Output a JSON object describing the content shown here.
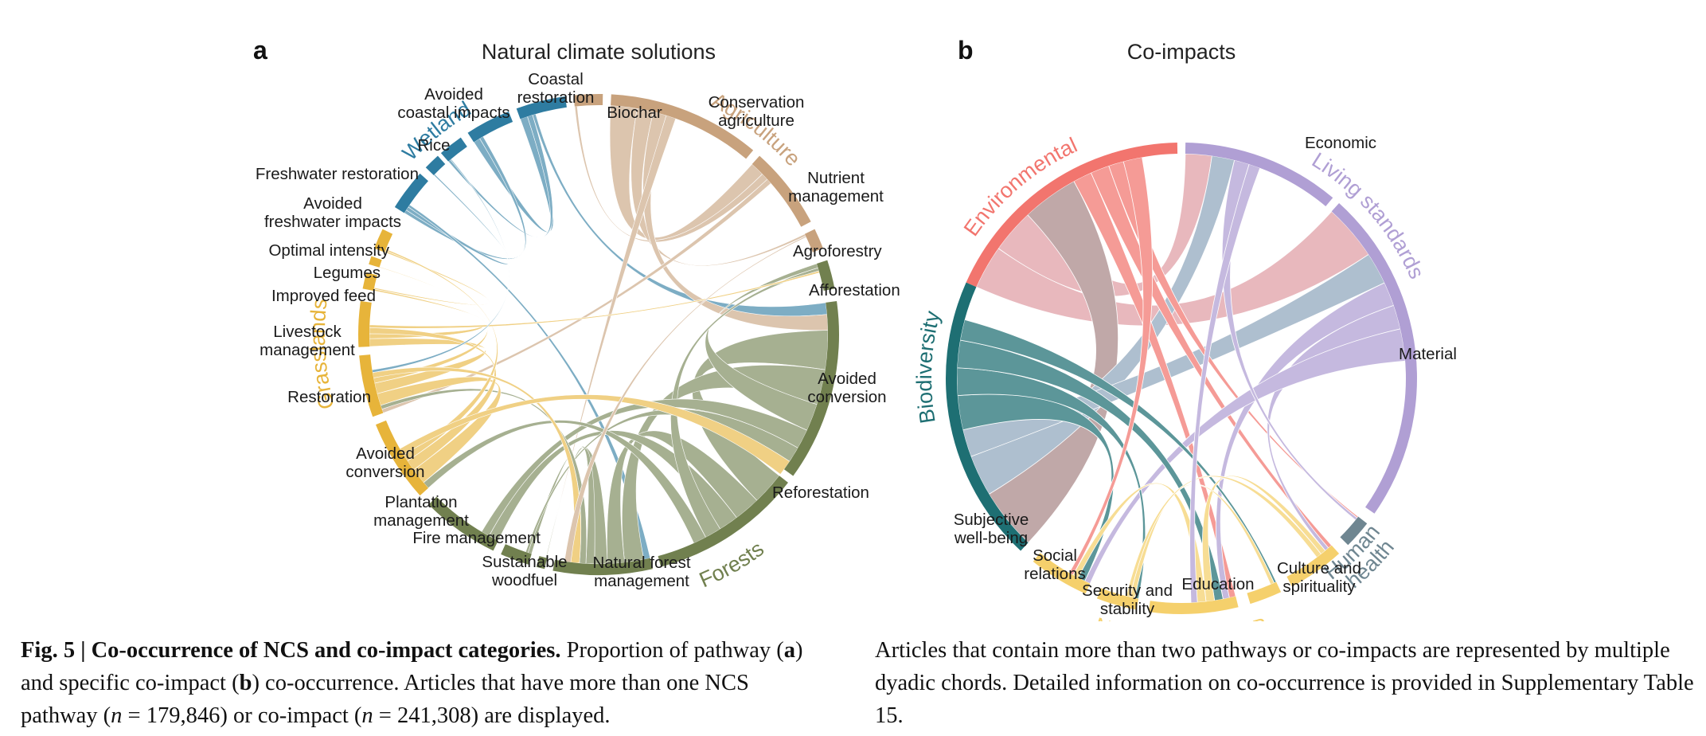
{
  "panel_a": {
    "letter": "a",
    "title": "Natural climate solutions",
    "groups": [
      {
        "label": "Wetland",
        "color": "#2E7CA1"
      },
      {
        "label": "Agriculture",
        "color": "#C8A27D"
      },
      {
        "label": "Forests",
        "color": "#71804F"
      },
      {
        "label": "Grasslands",
        "color": "#E7B43A"
      }
    ],
    "pathways": [
      {
        "group": "Wetland",
        "label": "Coastal restoration"
      },
      {
        "group": "Wetland",
        "label": "Avoided coastal impacts"
      },
      {
        "group": "Wetland",
        "label": "Rice"
      },
      {
        "group": "Wetland",
        "label": "Freshwater restoration"
      },
      {
        "group": "Wetland",
        "label": "Avoided freshwater impacts"
      },
      {
        "group": "Agriculture",
        "label": "Biochar"
      },
      {
        "group": "Agriculture",
        "label": "Conservation agriculture"
      },
      {
        "group": "Agriculture",
        "label": "Nutrient management"
      },
      {
        "group": "Agriculture",
        "label": "Agroforestry"
      },
      {
        "group": "Forests",
        "label": "Afforestation"
      },
      {
        "group": "Forests",
        "label": "Avoided conversion"
      },
      {
        "group": "Forests",
        "label": "Reforestation"
      },
      {
        "group": "Forests",
        "label": "Natural forest management"
      },
      {
        "group": "Forests",
        "label": "Sustainable woodfuel"
      },
      {
        "group": "Forests",
        "label": "Fire management"
      },
      {
        "group": "Forests",
        "label": "Plantation management"
      },
      {
        "group": "Grasslands",
        "label": "Avoided conversion"
      },
      {
        "group": "Grasslands",
        "label": "Restoration"
      },
      {
        "group": "Grasslands",
        "label": "Livestock management"
      },
      {
        "group": "Grasslands",
        "label": "Improved feed"
      },
      {
        "group": "Grasslands",
        "label": "Legumes"
      },
      {
        "group": "Grasslands",
        "label": "Optimal intensity"
      }
    ]
  },
  "panel_b": {
    "letter": "b",
    "title": "Co-impacts",
    "groups": [
      {
        "label": "Environmental",
        "color": "#F2756E"
      },
      {
        "label": "Living standards",
        "color": "#B09FD4"
      },
      {
        "label": "Human health",
        "color": "#6F8691"
      },
      {
        "label": "Non-material HWB",
        "color": "#F5D06C"
      },
      {
        "label": "Biodiversity",
        "color": "#1E6F73"
      }
    ],
    "categories": [
      {
        "group": "Environmental",
        "label": ""
      },
      {
        "group": "Living standards",
        "label": "Economic"
      },
      {
        "group": "Living standards",
        "label": "Material"
      },
      {
        "group": "Human health",
        "label": ""
      },
      {
        "group": "Non-material HWB",
        "label": "Culture and spirituality"
      },
      {
        "group": "Non-material HWB",
        "label": "Education"
      },
      {
        "group": "Non-material HWB",
        "label": "Security and stability"
      },
      {
        "group": "Non-material HWB",
        "label": "Social relations"
      },
      {
        "group": "Non-material HWB",
        "label": "Subjective well-being"
      },
      {
        "group": "Biodiversity",
        "label": ""
      }
    ]
  },
  "caption": {
    "fig": "Fig. 5 | Co-occurrence of NCS and co-impact categories.",
    "t1": " Proportion of pathway (",
    "a": "a",
    "t2": ") and specific co-impact (",
    "b": "b",
    "t3": ") co-occurrence. Articles that have more than one NCS pathway (",
    "n": "n",
    "eq1": " = 179,846) or co-impact (",
    "eq2": " = 241,308) are displayed.",
    "right": "Articles that contain more than two pathways or co-impacts are represented by multiple dyadic chords. Detailed information on co-occurrence is provided in Supplementary Table 15."
  }
}
